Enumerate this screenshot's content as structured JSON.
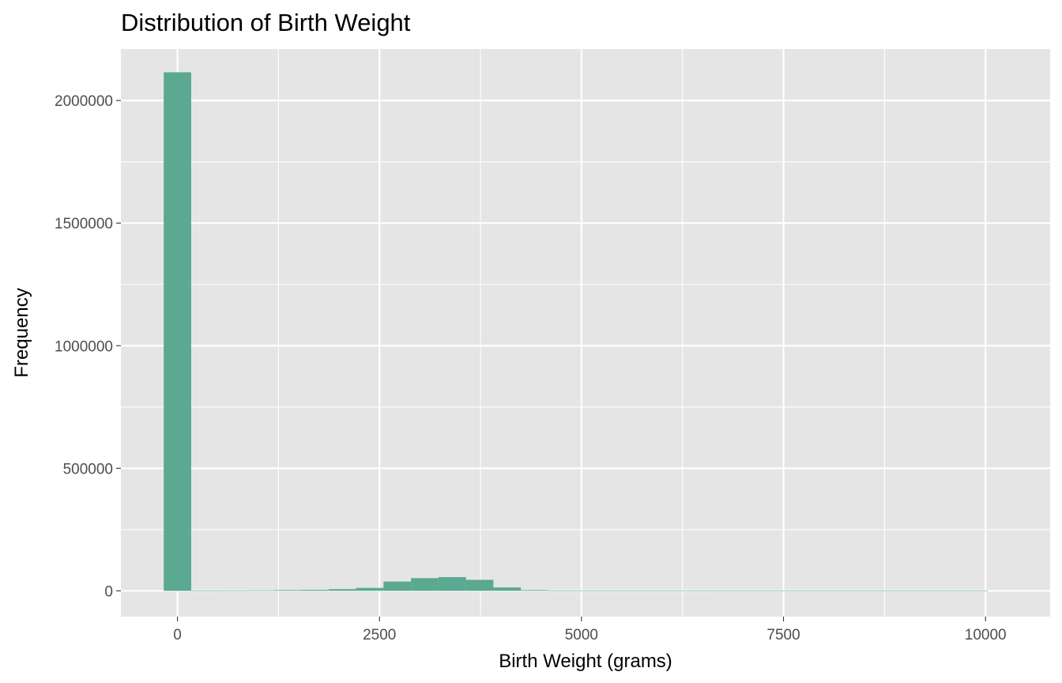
{
  "chart_data": {
    "type": "bar",
    "title": "Distribution of Birth Weight",
    "xlabel": "Birth Weight (grams)",
    "ylabel": "Frequency",
    "xlim": [
      -700,
      10800
    ],
    "ylim": [
      -105000,
      2210000
    ],
    "x_ticks": [
      0,
      2500,
      5000,
      7500,
      10000
    ],
    "x_tick_labels": [
      "0",
      "2500",
      "5000",
      "7500",
      "10000"
    ],
    "y_ticks": [
      0,
      500000,
      1000000,
      1500000,
      2000000
    ],
    "y_tick_labels": [
      "0",
      "500000",
      "1000000",
      "1500000",
      "2000000"
    ],
    "grid": true,
    "bin_width": 340,
    "bins": [
      {
        "x": 0,
        "count": 2115000
      },
      {
        "x": 340,
        "count": 1000
      },
      {
        "x": 680,
        "count": 1500
      },
      {
        "x": 1020,
        "count": 2000
      },
      {
        "x": 1360,
        "count": 3000
      },
      {
        "x": 1700,
        "count": 4000
      },
      {
        "x": 2040,
        "count": 7000
      },
      {
        "x": 2380,
        "count": 12000
      },
      {
        "x": 2720,
        "count": 38000
      },
      {
        "x": 3060,
        "count": 52000
      },
      {
        "x": 3400,
        "count": 56000
      },
      {
        "x": 3740,
        "count": 45000
      },
      {
        "x": 4080,
        "count": 14000
      },
      {
        "x": 4420,
        "count": 3000
      },
      {
        "x": 4760,
        "count": 1000
      },
      {
        "x": 5100,
        "count": 500
      },
      {
        "x": 5440,
        "count": 300
      },
      {
        "x": 5780,
        "count": 200
      },
      {
        "x": 6120,
        "count": 100
      },
      {
        "x": 6460,
        "count": 100
      },
      {
        "x": 6800,
        "count": 50
      },
      {
        "x": 7140,
        "count": 50
      },
      {
        "x": 7480,
        "count": 50
      },
      {
        "x": 7820,
        "count": 50
      },
      {
        "x": 8160,
        "count": 50
      },
      {
        "x": 8500,
        "count": 50
      },
      {
        "x": 8840,
        "count": 50
      },
      {
        "x": 9180,
        "count": 50
      },
      {
        "x": 9520,
        "count": 50
      },
      {
        "x": 9860,
        "count": 50
      }
    ],
    "colors": {
      "bar_fill": "#5aa990",
      "panel_bg": "#e5e5e5",
      "grid_line": "#ffffff",
      "tick_text": "#4d4d4d",
      "tick_mark": "#333333"
    }
  }
}
